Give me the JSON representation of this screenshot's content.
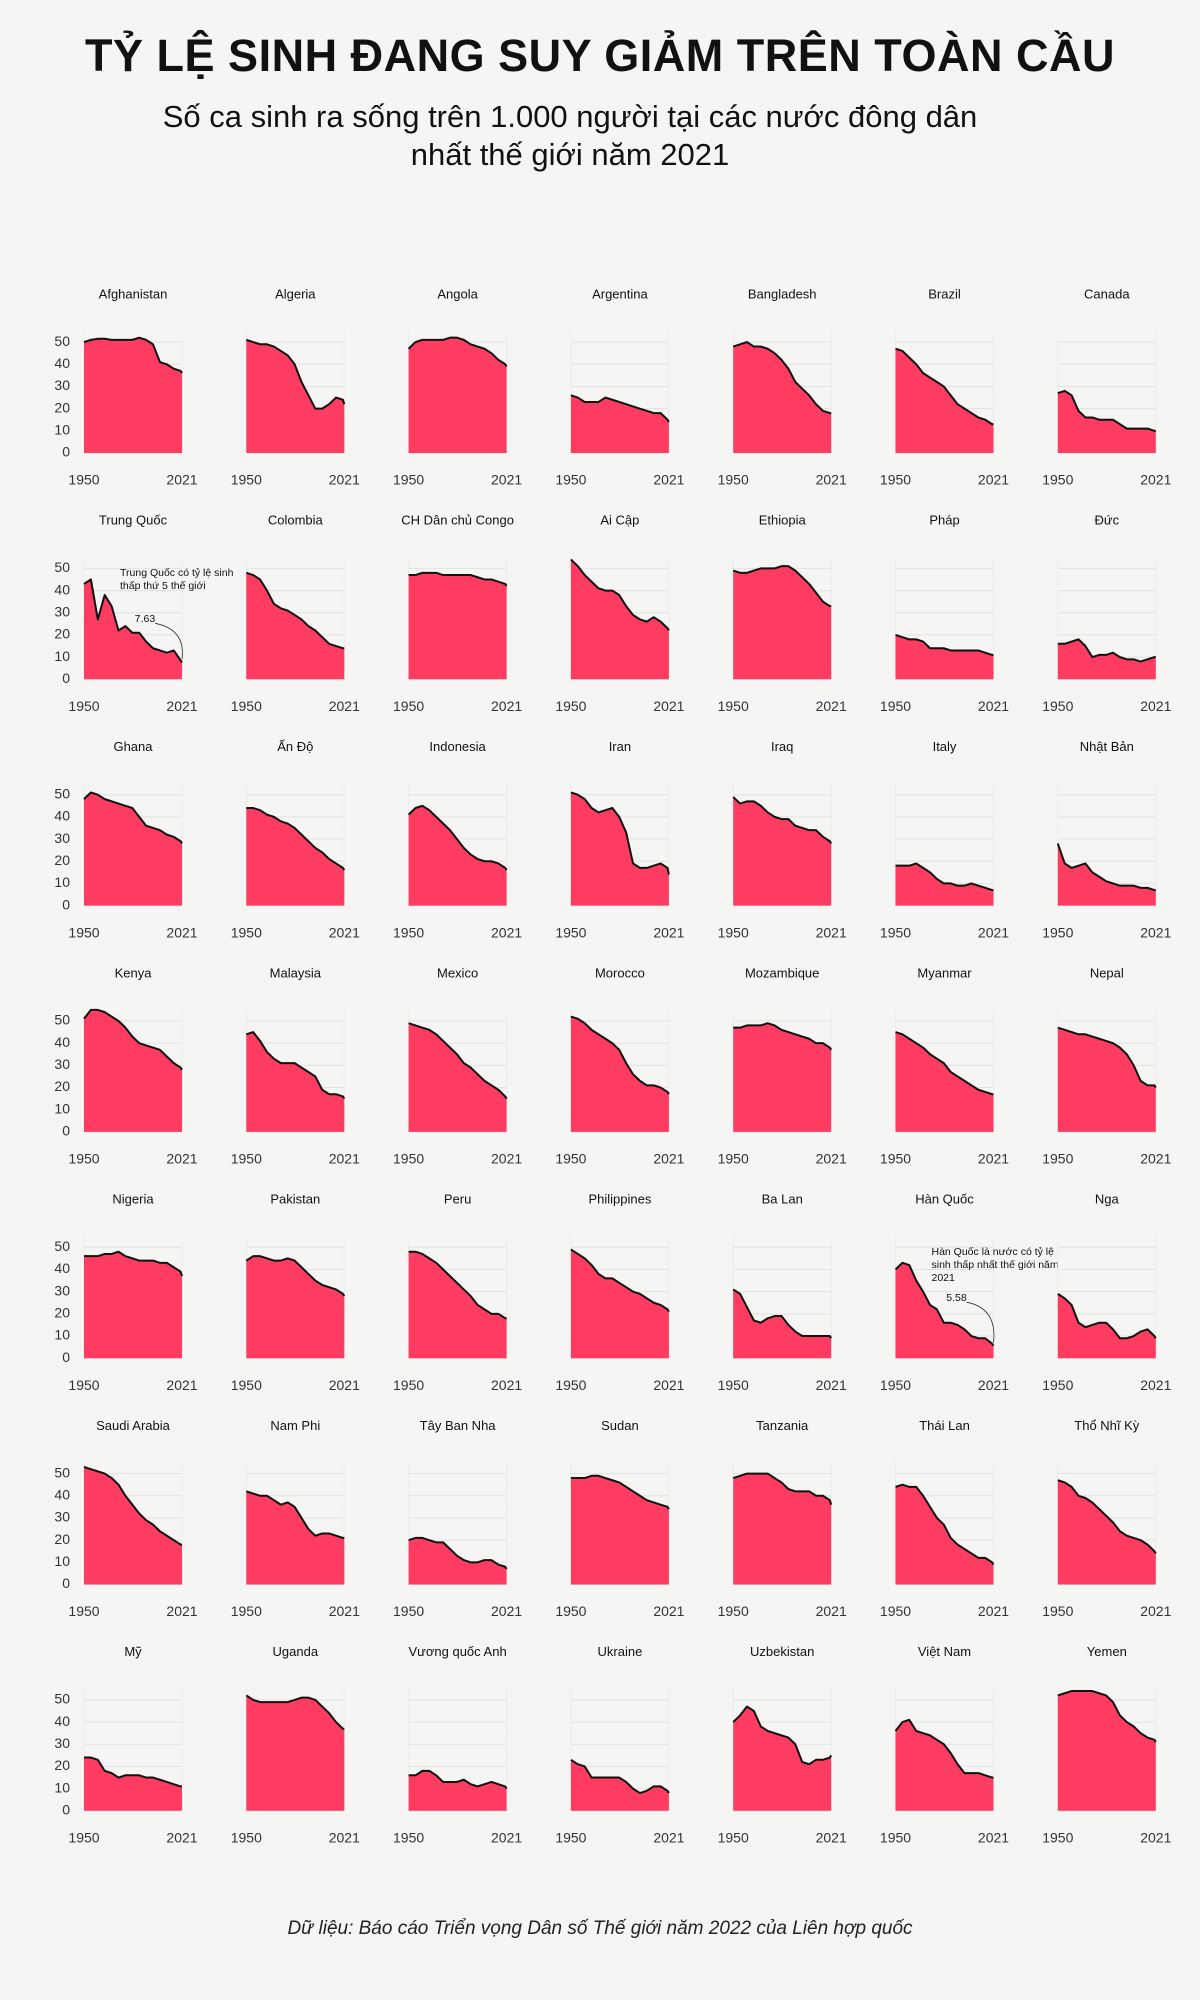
{
  "chart_data": {
    "type": "area",
    "title": "TỶ LỆ SINH ĐANG SUY GIẢM TRÊN TOÀN CẦU",
    "subtitle": "Số ca sinh ra sống trên 1.000 người tại các nước đông dân nhất thế giới năm 2021",
    "source": "Dữ liệu: Báo cáo Triển vọng Dân số Thế giới năm 2022 của Liên hợp quốc",
    "color": "#fe3c61",
    "line_color": "#111111",
    "grid": true,
    "x": [
      1950,
      1955,
      1960,
      1965,
      1970,
      1975,
      1980,
      1985,
      1990,
      1995,
      2000,
      2005,
      2010,
      2015,
      2020,
      2021
    ],
    "xlim": [
      1950,
      2021
    ],
    "xticks": [
      1950,
      2021
    ],
    "ylim": [
      0,
      55
    ],
    "yticks": [
      0,
      10,
      20,
      30,
      40,
      50
    ],
    "series": [
      {
        "name": "Afghanistan",
        "values": [
          50,
          51,
          51.5,
          51.5,
          51,
          51,
          51,
          51,
          52,
          51,
          49,
          41,
          40,
          38,
          37,
          36
        ]
      },
      {
        "name": "Algeria",
        "values": [
          51,
          50,
          49,
          49,
          48,
          46,
          44,
          40,
          32,
          26,
          20,
          20,
          22,
          25,
          24,
          22
        ]
      },
      {
        "name": "Angola",
        "values": [
          47,
          50,
          51,
          51,
          51,
          51,
          52,
          52,
          51,
          49,
          48,
          47,
          45,
          42,
          40,
          39
        ]
      },
      {
        "name": "Argentina",
        "values": [
          26,
          25,
          23,
          23,
          23,
          25,
          24,
          23,
          22,
          21,
          20,
          19,
          18,
          18,
          15,
          14
        ]
      },
      {
        "name": "Bangladesh",
        "values": [
          48,
          49,
          50,
          48,
          48,
          47,
          45,
          42,
          38,
          32,
          29,
          26,
          22,
          19,
          18,
          18
        ]
      },
      {
        "name": "Brazil",
        "values": [
          47,
          46,
          43,
          40,
          36,
          34,
          32,
          30,
          26,
          22,
          20,
          18,
          16,
          15,
          13,
          13
        ]
      },
      {
        "name": "Canada",
        "values": [
          27,
          28,
          26,
          19,
          16,
          16,
          15,
          15,
          15,
          13,
          11,
          11,
          11,
          11,
          10,
          10
        ]
      },
      {
        "name": "Trung Quốc",
        "values": [
          43,
          45,
          27,
          38,
          33,
          22,
          24,
          21,
          21,
          17,
          14,
          13,
          12,
          13,
          8.5,
          7.63
        ],
        "note": "Trung Quốc có tỷ lệ sinh thấp thứ 5 thế giới"
      },
      {
        "name": "Colombia",
        "values": [
          48,
          47,
          45,
          40,
          34,
          32,
          31,
          29,
          27,
          24,
          22,
          19,
          16,
          15,
          14,
          14
        ]
      },
      {
        "name": "CH Dân chủ Congo",
        "values": [
          47,
          47,
          48,
          48,
          48,
          47,
          47,
          47,
          47,
          47,
          46,
          45,
          45,
          44,
          43,
          42
        ]
      },
      {
        "name": "Ai Cập",
        "values": [
          54,
          51,
          47,
          44,
          41,
          40,
          40,
          38,
          33,
          29,
          27,
          26,
          28,
          26,
          23,
          22
        ]
      },
      {
        "name": "Ethiopia",
        "values": [
          49,
          48,
          48,
          49,
          50,
          50,
          50,
          51,
          51,
          49,
          46,
          43,
          39,
          35,
          33,
          33
        ]
      },
      {
        "name": "Pháp",
        "values": [
          20,
          19,
          18,
          18,
          17,
          14,
          14,
          14,
          13,
          13,
          13,
          13,
          13,
          12,
          11,
          11
        ]
      },
      {
        "name": "Đức",
        "values": [
          16,
          16,
          17,
          18,
          15,
          10,
          11,
          11,
          12,
          10,
          9,
          9,
          8,
          9,
          10,
          10
        ]
      },
      {
        "name": "Ghana",
        "values": [
          48,
          51,
          50,
          48,
          47,
          46,
          45,
          44,
          40,
          36,
          35,
          34,
          32,
          31,
          29,
          28
        ]
      },
      {
        "name": "Ấn Độ",
        "values": [
          44,
          44,
          43,
          41,
          40,
          38,
          37,
          35,
          32,
          29,
          26,
          24,
          21,
          19,
          17,
          16
        ]
      },
      {
        "name": "Indonesia",
        "values": [
          41,
          44,
          45,
          43,
          40,
          37,
          34,
          30,
          26,
          23,
          21,
          20,
          20,
          19,
          17,
          16
        ]
      },
      {
        "name": "Iran",
        "values": [
          51,
          50,
          48,
          44,
          42,
          43,
          44,
          40,
          33,
          19,
          17,
          17,
          18,
          19,
          17,
          14
        ]
      },
      {
        "name": "Iraq",
        "values": [
          49,
          46,
          47,
          47,
          45,
          42,
          40,
          39,
          39,
          36,
          35,
          34,
          34,
          31,
          29,
          28
        ]
      },
      {
        "name": "Italy",
        "values": [
          18,
          18,
          18,
          19,
          17,
          15,
          12,
          10,
          10,
          9,
          9,
          10,
          9,
          8,
          7,
          7
        ]
      },
      {
        "name": "Nhật Bản",
        "values": [
          28,
          19,
          17,
          18,
          19,
          15,
          13,
          11,
          10,
          9,
          9,
          9,
          8,
          8,
          7,
          7
        ]
      },
      {
        "name": "Kenya",
        "values": [
          51,
          55,
          55,
          54,
          52,
          50,
          47,
          43,
          40,
          39,
          38,
          37,
          34,
          31,
          29,
          28
        ]
      },
      {
        "name": "Malaysia",
        "values": [
          44,
          45,
          41,
          36,
          33,
          31,
          31,
          31,
          29,
          27,
          25,
          19,
          17,
          17,
          16,
          15
        ]
      },
      {
        "name": "Mexico",
        "values": [
          49,
          48,
          47,
          46,
          44,
          41,
          38,
          35,
          31,
          29,
          26,
          23,
          21,
          19,
          16,
          15
        ]
      },
      {
        "name": "Morocco",
        "values": [
          52,
          51,
          49,
          46,
          44,
          42,
          40,
          37,
          31,
          26,
          23,
          21,
          21,
          20,
          18,
          17
        ]
      },
      {
        "name": "Mozambique",
        "values": [
          47,
          47,
          48,
          48,
          48,
          49,
          48,
          46,
          45,
          44,
          43,
          42,
          40,
          40,
          38,
          37
        ]
      },
      {
        "name": "Myanmar",
        "values": [
          45,
          44,
          42,
          40,
          38,
          35,
          33,
          31,
          27,
          25,
          23,
          21,
          19,
          18,
          17,
          17
        ]
      },
      {
        "name": "Nepal",
        "values": [
          47,
          46,
          45,
          44,
          44,
          43,
          42,
          41,
          40,
          38,
          35,
          30,
          23,
          21,
          21,
          20
        ]
      },
      {
        "name": "Nigeria",
        "values": [
          46,
          46,
          46,
          47,
          47,
          48,
          46,
          45,
          44,
          44,
          44,
          43,
          43,
          41,
          39,
          37
        ]
      },
      {
        "name": "Pakistan",
        "values": [
          44,
          46,
          46,
          45,
          44,
          44,
          45,
          44,
          41,
          38,
          35,
          33,
          32,
          31,
          29,
          28
        ]
      },
      {
        "name": "Peru",
        "values": [
          48,
          48,
          47,
          45,
          43,
          40,
          37,
          34,
          31,
          28,
          24,
          22,
          20,
          20,
          18,
          18
        ]
      },
      {
        "name": "Philippines",
        "values": [
          49,
          47,
          45,
          42,
          38,
          36,
          36,
          34,
          32,
          30,
          29,
          27,
          25,
          24,
          22,
          21
        ]
      },
      {
        "name": "Ba Lan",
        "values": [
          31,
          29,
          23,
          17,
          16,
          18,
          19,
          19,
          15,
          12,
          10,
          10,
          10,
          10,
          10,
          9
        ]
      },
      {
        "name": "Hàn Quốc",
        "values": [
          40,
          43,
          42,
          35,
          30,
          24,
          22,
          16,
          16,
          15,
          13,
          10,
          9,
          9,
          6.5,
          5.58
        ],
        "note": "Hàn Quốc là nước có tỷ lệ sinh thấp nhất thế giới năm 2021"
      },
      {
        "name": "Nga",
        "values": [
          29,
          27,
          24,
          16,
          14,
          15,
          16,
          16,
          13,
          9,
          9,
          10,
          12,
          13,
          10,
          9
        ]
      },
      {
        "name": "Saudi Arabia",
        "values": [
          53,
          52,
          51,
          50,
          48,
          45,
          40,
          36,
          32,
          29,
          27,
          24,
          22,
          20,
          18,
          18
        ]
      },
      {
        "name": "Nam Phi",
        "values": [
          42,
          41,
          40,
          40,
          38,
          36,
          37,
          35,
          30,
          25,
          22,
          23,
          23,
          22,
          21,
          21
        ]
      },
      {
        "name": "Tây Ban Nha",
        "values": [
          20,
          21,
          21,
          20,
          19,
          19,
          16,
          13,
          11,
          10,
          10,
          11,
          11,
          9,
          8,
          7
        ]
      },
      {
        "name": "Sudan",
        "values": [
          48,
          48,
          48,
          49,
          49,
          48,
          47,
          46,
          44,
          42,
          40,
          38,
          37,
          36,
          35,
          34
        ]
      },
      {
        "name": "Tanzania",
        "values": [
          48,
          49,
          50,
          50,
          50,
          50,
          48,
          46,
          43,
          42,
          42,
          42,
          40,
          40,
          38,
          36
        ]
      },
      {
        "name": "Thái Lan",
        "values": [
          44,
          45,
          44,
          44,
          40,
          35,
          30,
          27,
          21,
          18,
          16,
          14,
          12,
          12,
          10,
          9
        ]
      },
      {
        "name": "Thổ Nhĩ Kỳ",
        "values": [
          47,
          46,
          44,
          40,
          39,
          37,
          34,
          31,
          28,
          24,
          22,
          21,
          20,
          18,
          15,
          14
        ]
      },
      {
        "name": "Mỹ",
        "values": [
          24,
          24,
          23,
          18,
          17,
          15,
          16,
          16,
          16,
          15,
          15,
          14,
          13,
          12,
          11,
          11
        ]
      },
      {
        "name": "Uganda",
        "values": [
          52,
          50,
          49,
          49,
          49,
          49,
          49,
          50,
          51,
          51,
          50,
          47,
          44,
          40,
          37,
          37
        ]
      },
      {
        "name": "Vương quốc Anh",
        "values": [
          16,
          16,
          18,
          18,
          16,
          13,
          13,
          13,
          14,
          12,
          11,
          12,
          13,
          12,
          11,
          10
        ]
      },
      {
        "name": "Ukraine",
        "values": [
          23,
          21,
          20,
          15,
          15,
          15,
          15,
          15,
          13,
          10,
          8,
          9,
          11,
          11,
          9,
          8
        ]
      },
      {
        "name": "Uzbekistan",
        "values": [
          40,
          43,
          47,
          45,
          38,
          36,
          35,
          34,
          33,
          30,
          22,
          21,
          23,
          23,
          24,
          25
        ]
      },
      {
        "name": "Việt Nam",
        "values": [
          36,
          40,
          41,
          36,
          35,
          34,
          32,
          30,
          26,
          21,
          17,
          17,
          17,
          16,
          15,
          15
        ]
      },
      {
        "name": "Yemen",
        "values": [
          52,
          53,
          54,
          54,
          54,
          54,
          53,
          52,
          49,
          43,
          40,
          38,
          35,
          33,
          32,
          31
        ]
      }
    ]
  }
}
